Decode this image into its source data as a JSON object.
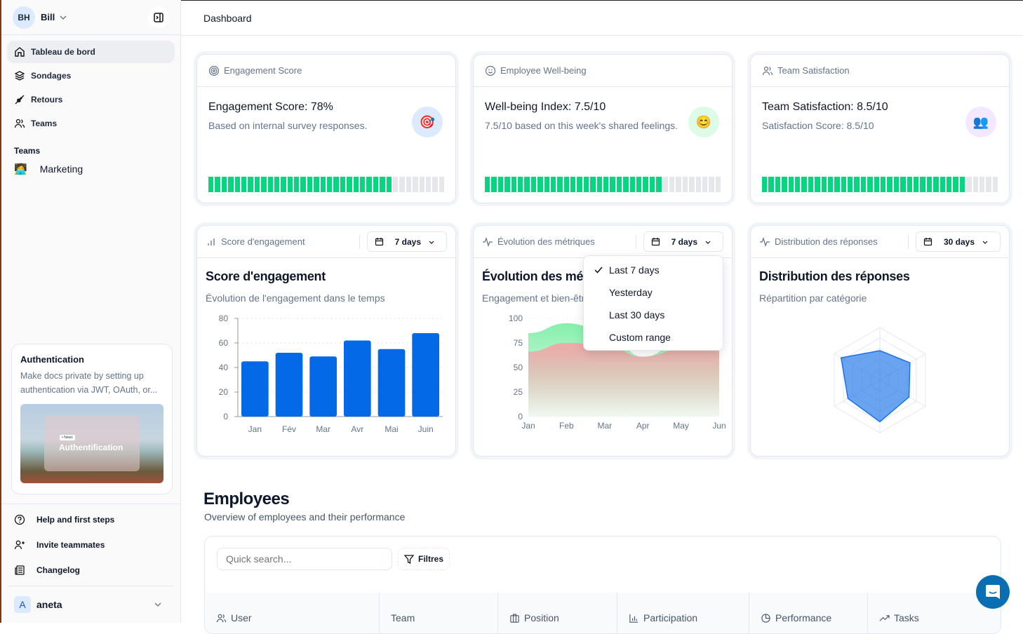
{
  "sidebar": {
    "user": {
      "initials": "BH",
      "name": "Bill"
    },
    "items": [
      {
        "label": "Tableau de bord",
        "icon": "home-icon",
        "active": true
      },
      {
        "label": "Sondages",
        "icon": "layers-icon"
      },
      {
        "label": "Retours",
        "icon": "plug-icon"
      },
      {
        "label": "Teams",
        "icon": "users-icon"
      }
    ],
    "teams_heading": "Teams",
    "teams": [
      {
        "label": "Marketing",
        "icon": "🧑‍💻"
      }
    ],
    "promo": {
      "title": "Authentication",
      "text": "Make docs private by setting up authentication via JWT, OAuth, or...",
      "image_badge": "• News",
      "image_title": "Authentification"
    },
    "links": [
      {
        "label": "Help and first steps",
        "icon": "help-icon"
      },
      {
        "label": "Invite teammates",
        "icon": "user-plus-icon"
      },
      {
        "label": "Changelog",
        "icon": "newspaper-icon"
      }
    ],
    "account": {
      "initial": "A",
      "name": "aneta"
    }
  },
  "header": {
    "title": "Dashboard"
  },
  "kpis": [
    {
      "header": "Engagement Score",
      "title": "Engagement Score: 78%",
      "subtitle": "Based on internal survey responses.",
      "emoji": "🎯",
      "emoji_bg": "#dbeafe",
      "progress": 78
    },
    {
      "header": "Employee Well-being",
      "title": "Well-being Index: 7.5/10",
      "subtitle": "7.5/10 based on this week's shared feelings.",
      "emoji": "😊",
      "emoji_bg": "#dcfce7",
      "progress": 75
    },
    {
      "header": "Team Satisfaction",
      "title": "Team Satisfaction: 8.5/10",
      "subtitle": "Satisfaction Score: 8.5/10",
      "emoji": "👥",
      "emoji_bg": "#f3e8ff",
      "progress": 85
    }
  ],
  "charts": [
    {
      "header": "Score d'engagement",
      "range": "7 days",
      "title": "Score d'engagement",
      "subtitle": "Évolution de l'engagement dans le temps"
    },
    {
      "header": "Évolution des métriques",
      "range": "7 days",
      "title": "Évolution des métriques",
      "subtitle": "Engagement et bien-être"
    },
    {
      "header": "Distribution des réponses",
      "range": "30 days",
      "title": "Distribution des réponses",
      "subtitle": "Répartition par catégorie"
    }
  ],
  "dropdown": {
    "options": [
      "Last 7 days",
      "Yesterday",
      "Last 30 days",
      "Custom range"
    ],
    "selected": "Last 7 days"
  },
  "chart_data": [
    {
      "type": "bar",
      "categories": [
        "Jan",
        "Fév",
        "Mar",
        "Avr",
        "Mai",
        "Juin"
      ],
      "values": [
        45,
        52,
        49,
        62,
        55,
        68
      ],
      "ylim": [
        0,
        80
      ],
      "yticks": [
        "0",
        "20",
        "40",
        "60",
        "80"
      ],
      "grid": true,
      "color": "#0369e6"
    },
    {
      "type": "area",
      "categories": [
        "Jan",
        "Feb",
        "Mar",
        "Apr",
        "May",
        "Jun"
      ],
      "series": [
        {
          "values": [
            85,
            95,
            88,
            61,
            75,
            82
          ],
          "color": "#86efac"
        },
        {
          "values": [
            66,
            75,
            73,
            61,
            68,
            70
          ],
          "color": "#f0a8a8"
        }
      ],
      "ylim": [
        0,
        100
      ],
      "yticks": [
        "0",
        "25",
        "50",
        "75",
        "100"
      ],
      "grid": true
    },
    {
      "type": "radar",
      "values": [
        56,
        66,
        64,
        79,
        70,
        85
      ],
      "max": 100,
      "color": "#1a73e8"
    }
  ],
  "employees": {
    "title": "Employees",
    "subtitle": "Overview of employees and their performance",
    "search_placeholder": "Quick search...",
    "filters_label": "Filtres",
    "columns": [
      {
        "label": "User",
        "icon": "users-icon"
      },
      {
        "label": "Team",
        "icon": ""
      },
      {
        "label": "Position",
        "icon": "briefcase-icon"
      },
      {
        "label": "Participation",
        "icon": "bar-chart-icon"
      },
      {
        "label": "Performance",
        "icon": "pie-chart-icon"
      },
      {
        "label": "Tasks",
        "icon": "trending-up-icon"
      }
    ]
  }
}
